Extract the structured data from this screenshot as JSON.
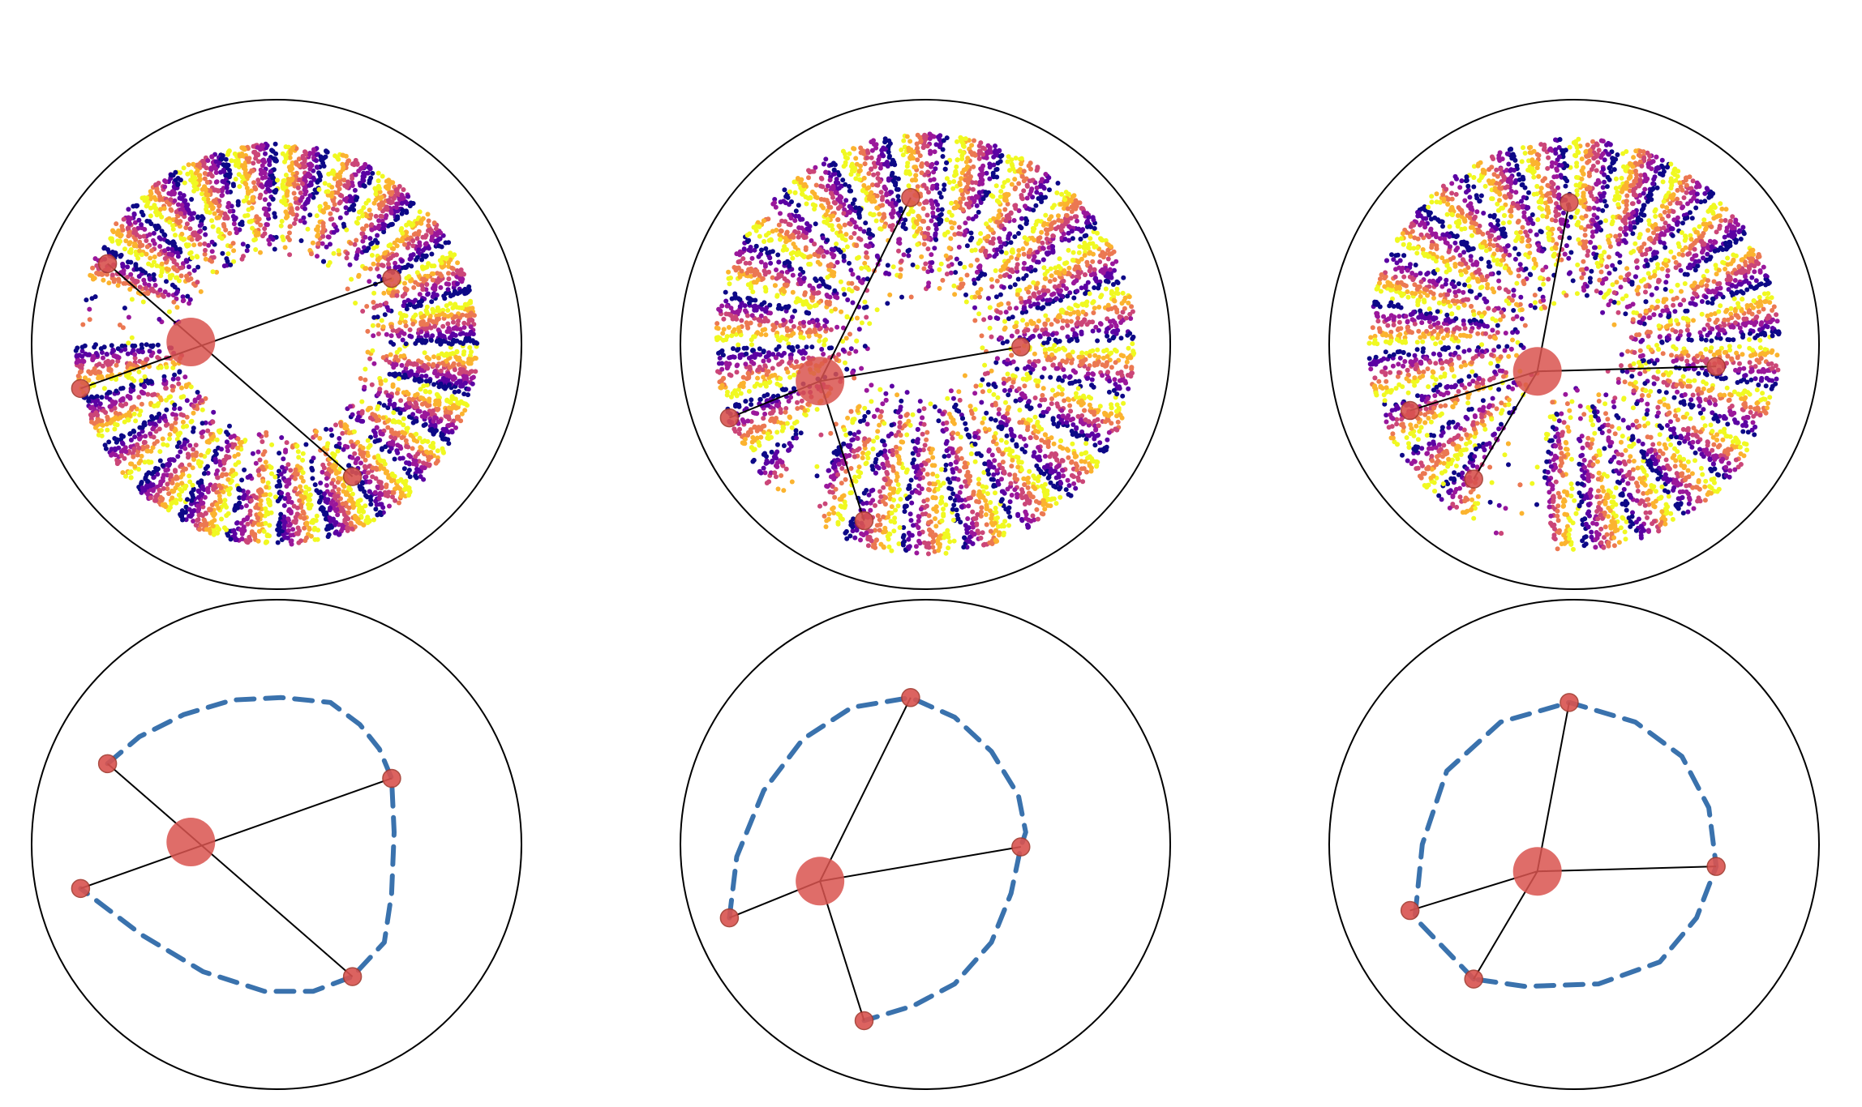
{
  "figure": {
    "rows": [
      "scatter",
      "path"
    ],
    "colors": {
      "boundary": "#000000",
      "link": "#000000",
      "node": "#d9534f",
      "node_edge": "#a33a2f",
      "path": "#3a72ad",
      "palette": [
        "#0d0887",
        "#5b02a3",
        "#9a179b",
        "#cb4678",
        "#eb7852",
        "#fbb32f",
        "#f0f921"
      ]
    },
    "panels": [
      {
        "name": "panel-1",
        "hub": [
          -0.35,
          0.01
        ],
        "nodes": [
          [
            -0.69,
            0.33
          ],
          [
            0.47,
            0.27
          ],
          [
            -0.8,
            -0.18
          ],
          [
            0.31,
            -0.54
          ]
        ],
        "links": [
          [
            0,
            3
          ],
          [
            2,
            1
          ]
        ],
        "path": [
          [
            -0.69,
            0.33
          ],
          [
            -0.56,
            0.44
          ],
          [
            -0.38,
            0.53
          ],
          [
            -0.18,
            0.59
          ],
          [
            0.02,
            0.6
          ],
          [
            0.22,
            0.58
          ],
          [
            0.34,
            0.49
          ],
          [
            0.42,
            0.39
          ],
          [
            0.47,
            0.27
          ],
          [
            0.48,
            0.05
          ],
          [
            0.47,
            -0.2
          ],
          [
            0.44,
            -0.4
          ],
          [
            0.31,
            -0.54
          ],
          [
            0.15,
            -0.6
          ],
          [
            -0.05,
            -0.6
          ],
          [
            -0.3,
            -0.52
          ],
          [
            -0.55,
            -0.37
          ],
          [
            -0.8,
            -0.18
          ]
        ],
        "scatter": {
          "r_inner": 0.35,
          "r_outer": 0.82,
          "gap_angle": 170,
          "gap_halfwidth": 10,
          "bands": 24,
          "twist": 0.0
        }
      },
      {
        "name": "panel-2",
        "hub": [
          -0.43,
          -0.15
        ],
        "nodes": [
          [
            -0.06,
            0.6
          ],
          [
            0.39,
            -0.01
          ],
          [
            -0.8,
            -0.3
          ],
          [
            -0.25,
            -0.72
          ]
        ],
        "links": [
          [
            4,
            0
          ],
          [
            4,
            1
          ],
          [
            4,
            2
          ],
          [
            4,
            3
          ]
        ],
        "path": [
          [
            -0.8,
            -0.3
          ],
          [
            -0.77,
            -0.05
          ],
          [
            -0.66,
            0.22
          ],
          [
            -0.5,
            0.43
          ],
          [
            -0.3,
            0.56
          ],
          [
            -0.06,
            0.6
          ],
          [
            0.12,
            0.52
          ],
          [
            0.27,
            0.38
          ],
          [
            0.38,
            0.2
          ],
          [
            0.41,
            0.05
          ],
          [
            0.39,
            -0.01
          ],
          [
            0.35,
            -0.2
          ],
          [
            0.27,
            -0.4
          ],
          [
            0.12,
            -0.57
          ],
          [
            -0.05,
            -0.66
          ],
          [
            -0.25,
            -0.72
          ]
        ],
        "scatter": {
          "r_inner": 0.2,
          "r_outer": 0.86,
          "gap_angle": 205,
          "gap_halfwidth": 8,
          "bands": 22,
          "twist": 0.55
        }
      },
      {
        "name": "panel-3",
        "hub": [
          -0.15,
          -0.11
        ],
        "nodes": [
          [
            -0.02,
            0.58
          ],
          [
            0.58,
            -0.09
          ],
          [
            -0.67,
            -0.27
          ],
          [
            -0.41,
            -0.55
          ]
        ],
        "links": [
          [
            4,
            0
          ],
          [
            4,
            1
          ],
          [
            4,
            2
          ],
          [
            4,
            3
          ]
        ],
        "path": [
          [
            -0.41,
            -0.55
          ],
          [
            -0.65,
            -0.3
          ],
          [
            -0.62,
            0.0
          ],
          [
            -0.52,
            0.3
          ],
          [
            -0.3,
            0.5
          ],
          [
            -0.02,
            0.58
          ],
          [
            0.25,
            0.5
          ],
          [
            0.44,
            0.36
          ],
          [
            0.55,
            0.15
          ],
          [
            0.58,
            -0.09
          ],
          [
            0.5,
            -0.3
          ],
          [
            0.35,
            -0.48
          ],
          [
            0.1,
            -0.57
          ],
          [
            -0.2,
            -0.58
          ],
          [
            -0.41,
            -0.55
          ]
        ],
        "scatter": {
          "r_inner": 0.17,
          "r_outer": 0.84,
          "gap_angle": 235,
          "gap_halfwidth": 12,
          "bands": 24,
          "twist": 0.35
        }
      }
    ]
  }
}
